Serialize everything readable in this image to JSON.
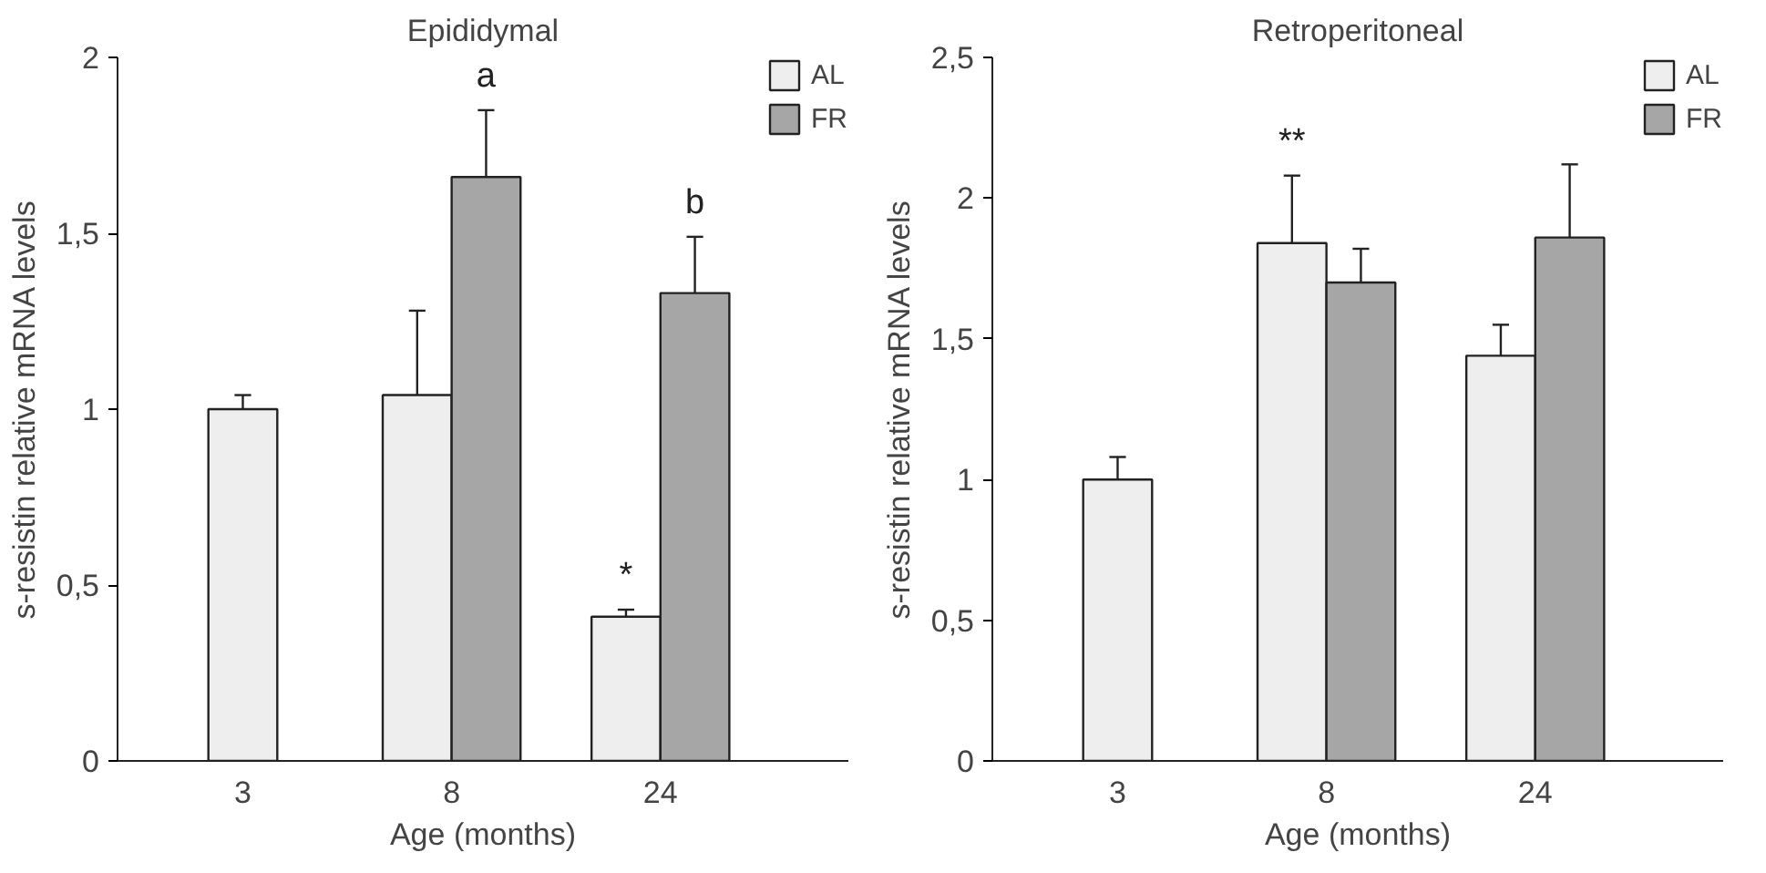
{
  "chart_data": [
    {
      "type": "bar",
      "title": "Epididymal",
      "xlabel": "Age (months)",
      "ylabel": "s-resistin relative mRNA levels",
      "categories": [
        "3",
        "8",
        "24"
      ],
      "series": [
        {
          "name": "AL",
          "color": "#eeeeee",
          "values": [
            1.0,
            1.04,
            0.41
          ],
          "errors": [
            [
              1.0,
              1.04
            ],
            [
              1.04,
              1.28
            ],
            [
              0.41,
              0.43
            ]
          ]
        },
        {
          "name": "FR",
          "color": "#a6a6a6",
          "values": [
            null,
            1.66,
            1.33
          ],
          "errors": [
            null,
            [
              1.66,
              1.85
            ],
            [
              1.33,
              1.49
            ]
          ]
        }
      ],
      "ylim": [
        0,
        2
      ],
      "yticks": [
        0,
        {
          "value": 0.5,
          "label": "0,5"
        },
        1,
        {
          "value": 1.5,
          "label": "1,5"
        },
        2
      ],
      "grid": false,
      "legend": "top right",
      "annotations": [
        {
          "text": "a",
          "x": "8",
          "y": 1.66
        },
        {
          "text": "b",
          "x": "24",
          "y": 1.33
        },
        {
          "text": "*",
          "x": "24",
          "y": 0.41
        }
      ]
    },
    {
      "type": "bar",
      "title": "Retroperitoneal",
      "xlabel": "Age (months)",
      "ylabel": "s-resistin relative mRNA levels",
      "categories": [
        "3",
        "8",
        "24"
      ],
      "series": [
        {
          "name": "AL",
          "color": "#eeeeee",
          "values": [
            1.0,
            1.84,
            1.44
          ],
          "errors": [
            [
              1.0,
              1.08
            ],
            [
              1.84,
              2.08
            ],
            [
              1.44,
              1.55
            ]
          ]
        },
        {
          "name": "FR",
          "color": "#a6a6a6",
          "values": [
            null,
            1.7,
            1.86
          ],
          "errors": [
            null,
            [
              1.7,
              1.82
            ],
            [
              1.86,
              2.12
            ]
          ]
        }
      ],
      "ylim": [
        0,
        2.5
      ],
      "yticks": [
        0,
        {
          "value": 0.5,
          "label": "0,5"
        },
        1,
        {
          "value": 1.5,
          "label": "1,5"
        },
        2,
        {
          "value": 2.5,
          "label": "2,5"
        }
      ],
      "grid": false,
      "legend": "top right",
      "annotations": [
        {
          "text": "**",
          "x": "8",
          "y": 1.84
        }
      ]
    }
  ]
}
